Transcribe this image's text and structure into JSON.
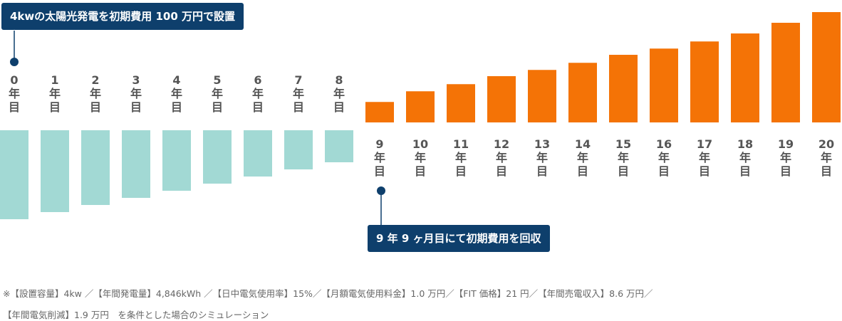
{
  "chart_data": {
    "type": "bar",
    "categories": [
      "0年目",
      "1年目",
      "2年目",
      "3年目",
      "4年目",
      "5年目",
      "6年目",
      "7年目",
      "8年目",
      "9年目",
      "10年目",
      "11年目",
      "12年目",
      "13年目",
      "14年目",
      "15年目",
      "16年目",
      "17年目",
      "18年目",
      "19年目",
      "20年目"
    ],
    "values": [
      -100,
      -92,
      -84,
      -76,
      -68,
      -60,
      -52,
      -44,
      -36,
      23,
      35,
      43,
      52,
      59,
      67,
      76,
      83,
      91,
      100,
      112,
      124
    ],
    "colors": {
      "negative": "#a2d9d4",
      "positive": "#f47306"
    },
    "annotations": [
      "4kwの太陽光発電を初期費用 100 万円で設置",
      "9 年 9 ヶ月目にて初期費用を回収"
    ]
  },
  "note": [
    "※【設置容量】4kw ／【年間発電量】4,846kWh ／【日中電気使用率】15%／【月額電気使用料金】1.0 万円／【FIT 価格】21 円／【年間売電収入】8.6 万円／",
    "【年間電気削減】1.9 万円　を条件とした場合のシミュレーション"
  ]
}
